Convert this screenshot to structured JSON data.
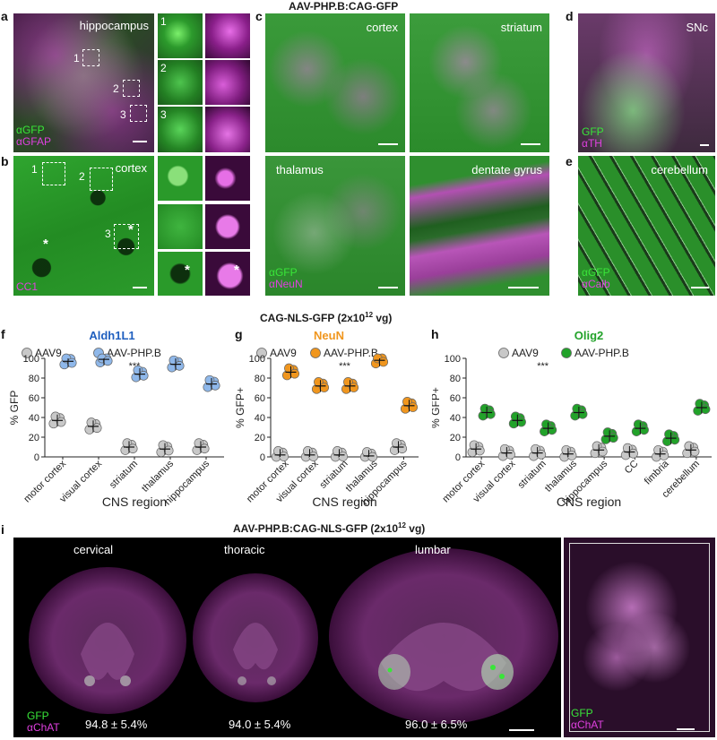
{
  "top": {
    "title_aav": "AAV-PHP.B:CAG-GFP",
    "title_nls": "CAG-NLS-GFP (2x10",
    "title_nls_sup": "12",
    "title_nls_tail": " vg)",
    "title_i": "AAV-PHP.B:CAG-NLS-GFP (2x10",
    "title_i_sup": "12",
    "title_i_tail": " vg)"
  },
  "panel_letters": {
    "a": "a",
    "b": "b",
    "c": "c",
    "d": "d",
    "e": "e",
    "f": "f",
    "g": "g",
    "h": "h",
    "i": "i"
  },
  "panel_a": {
    "label": "hippocampus",
    "ch1": "αGFP",
    "ch2": "αGFAP",
    "box1": "1",
    "box2": "2",
    "box3": "3",
    "inset1": "1",
    "inset2": "2",
    "inset3": "3"
  },
  "panel_b": {
    "label": "cortex",
    "ch1": "CC1",
    "box1": "1",
    "box2": "2",
    "box3": "3",
    "star": "*"
  },
  "panel_c": {
    "q1": "cortex",
    "q2": "striatum",
    "q3": "thalamus",
    "q4": "dentate gyrus",
    "ch1": "αGFP",
    "ch2": "αNeuN"
  },
  "panel_d": {
    "label": "SNc",
    "ch1": "GFP",
    "ch2": "αTH"
  },
  "panel_e": {
    "label": "cerebellum",
    "ch1": "αGFP",
    "ch2": "αCalb"
  },
  "panel_i": {
    "cervical": "cervical",
    "thoracic": "thoracic",
    "lumbar": "lumbar",
    "ch1": "GFP",
    "ch2": "αChAT",
    "v1": "94.8 ± 5.4%",
    "v2": "94.0 ± 5.4%",
    "v3": "96.0 ± 6.5%",
    "inset_ch1": "GFP",
    "inset_ch2": "αChAT"
  },
  "colors": {
    "gfp": "#39e639",
    "magenta": "#e040e0",
    "blue": "#1f5fbf",
    "orange": "#f0961e",
    "green": "#22a22a"
  },
  "chart_data": [
    {
      "type": "scatter",
      "title": "Aldh1L1",
      "xlabel": "CNS region",
      "ylabel": "% GFP",
      "ylim": [
        0,
        100
      ],
      "yticks": [
        0,
        20,
        40,
        60,
        80,
        100
      ],
      "significance": "***",
      "categories": [
        "motor cortex",
        "visual cortex",
        "striatum",
        "thalamus",
        "hippocampus"
      ],
      "series": [
        {
          "name": "AAV9",
          "color": "#c8c8c8",
          "means": [
            37,
            31,
            10,
            8,
            10
          ]
        },
        {
          "name": "AAV-PHP.B",
          "color": "#8fb8ea",
          "means": [
            97,
            99,
            84,
            94,
            74
          ]
        }
      ]
    },
    {
      "type": "scatter",
      "title": "NeuN",
      "xlabel": "CNS region",
      "ylabel": "% GFP+",
      "ylim": [
        0,
        100
      ],
      "yticks": [
        0,
        20,
        40,
        60,
        80,
        100
      ],
      "significance": "***",
      "categories": [
        "motor cortex",
        "visual cortex",
        "striatum",
        "thalamus",
        "hippocampus"
      ],
      "series": [
        {
          "name": "AAV9",
          "color": "#c8c8c8",
          "means": [
            2,
            2,
            2,
            1,
            10
          ]
        },
        {
          "name": "AAV-PHP.B",
          "color": "#f0961e",
          "means": [
            86,
            72,
            72,
            98,
            52
          ]
        }
      ]
    },
    {
      "type": "scatter",
      "title": "Olig2",
      "xlabel": "CNS region",
      "ylabel": "% GFP+",
      "ylim": [
        0,
        100
      ],
      "yticks": [
        0,
        20,
        40,
        60,
        80,
        100
      ],
      "significance": "***",
      "categories": [
        "motor cortex",
        "visual cortex",
        "striatum",
        "thalamus",
        "hippocampus",
        "CC",
        "fimbria",
        "cerebellum"
      ],
      "series": [
        {
          "name": "AAV9",
          "color": "#c8c8c8",
          "means": [
            8,
            4,
            4,
            3,
            7,
            5,
            3,
            7
          ]
        },
        {
          "name": "AAV-PHP.B",
          "color": "#22a22a",
          "means": [
            45,
            37,
            29,
            45,
            21,
            29,
            19,
            50
          ]
        }
      ]
    }
  ]
}
